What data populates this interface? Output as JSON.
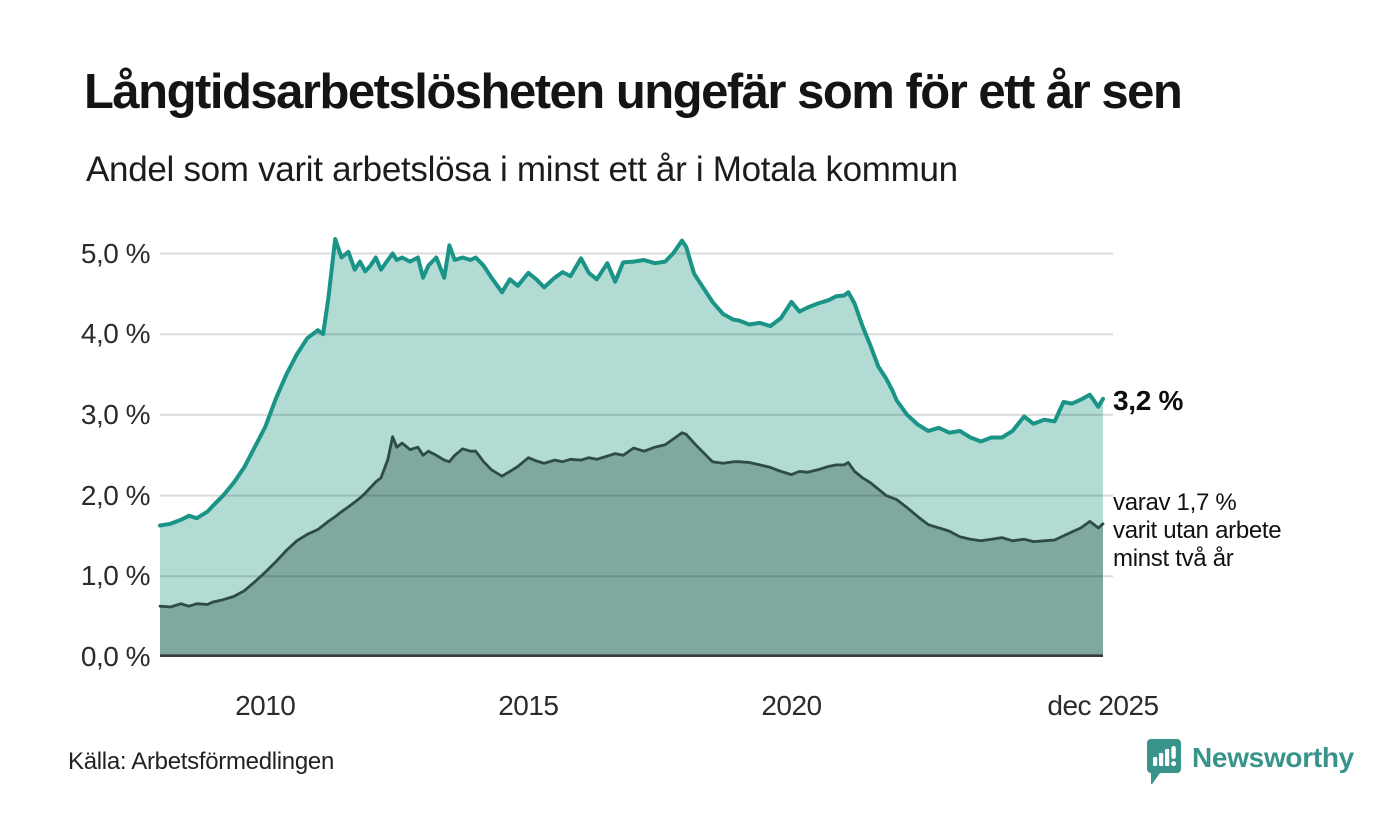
{
  "header": {
    "title": "Långtidsarbetslösheten ungefär som för ett år sen",
    "subtitle": "Andel som varit arbetslösa i minst ett år i Motala kommun"
  },
  "annotations": {
    "latest_total_label": "3,2 %",
    "secondary_line1": "varav 1,7 %",
    "secondary_line2": "varit utan arbete",
    "secondary_line3": "minst två år"
  },
  "footer": {
    "source": "Källa: Arbetsförmedlingen",
    "brand_name": "Newsworthy",
    "brand_icon": "newsworthy-speech-bubble-bar-chart-icon",
    "brand_color": "#38948b"
  },
  "colors": {
    "title_text": "#141414",
    "axis_text": "#2b2b2b",
    "grid_overlay": "rgba(0,0,0,0.14)",
    "baseline": "#3a3a3a",
    "series1_line": "#1a9486",
    "series1_fill": "#b2dbd4",
    "series2_line": "#2e4b47",
    "series2_fill": "#7fa8a1"
  },
  "chart_data": {
    "type": "area",
    "title": "Långtidsarbetslösheten ungefär som för ett år sen",
    "subtitle": "Andel som varit arbetslösa i minst ett år i Motala kommun",
    "unit": "%",
    "x_range": [
      2008.0,
      2025.92
    ],
    "ylim": [
      0,
      5.31
    ],
    "grid": true,
    "legend_position": "right-annotations",
    "y_ticks": [
      {
        "label": "0,0 %",
        "v": 0
      },
      {
        "label": "1,0 %",
        "v": 1
      },
      {
        "label": "2,0 %",
        "v": 2
      },
      {
        "label": "3,0 %",
        "v": 3
      },
      {
        "label": "4,0 %",
        "v": 4
      },
      {
        "label": "5,0 %",
        "v": 5
      }
    ],
    "x_ticks": [
      {
        "label": "2010",
        "x": 2010.0
      },
      {
        "label": "2015",
        "x": 2015.0
      },
      {
        "label": "2020",
        "x": 2020.0
      },
      {
        "label": "dec 2025",
        "x": 2025.92
      }
    ],
    "latest_values": {
      "total_min_one_year": 3.2,
      "min_two_years": 1.7
    },
    "x": [
      2008.0,
      2008.2,
      2008.4,
      2008.55,
      2008.7,
      2008.9,
      2009.0,
      2009.2,
      2009.4,
      2009.6,
      2009.8,
      2010.0,
      2010.2,
      2010.4,
      2010.6,
      2010.8,
      2011.0,
      2011.1,
      2011.2,
      2011.33,
      2011.45,
      2011.58,
      2011.7,
      2011.8,
      2011.9,
      2012.0,
      2012.1,
      2012.2,
      2012.33,
      2012.42,
      2012.5,
      2012.6,
      2012.75,
      2012.9,
      2013.0,
      2013.1,
      2013.25,
      2013.4,
      2013.5,
      2013.6,
      2013.75,
      2013.9,
      2014.0,
      2014.15,
      2014.3,
      2014.5,
      2014.65,
      2014.8,
      2015.0,
      2015.15,
      2015.3,
      2015.5,
      2015.65,
      2015.8,
      2016.0,
      2016.15,
      2016.3,
      2016.5,
      2016.65,
      2016.8,
      2017.0,
      2017.2,
      2017.4,
      2017.6,
      2017.75,
      2017.92,
      2018.0,
      2018.15,
      2018.3,
      2018.5,
      2018.7,
      2018.9,
      2019.0,
      2019.2,
      2019.4,
      2019.6,
      2019.8,
      2020.0,
      2020.15,
      2020.3,
      2020.5,
      2020.7,
      2020.85,
      2021.0,
      2021.08,
      2021.2,
      2021.35,
      2021.5,
      2021.65,
      2021.8,
      2021.92,
      2022.0,
      2022.2,
      2022.4,
      2022.6,
      2022.8,
      2023.0,
      2023.2,
      2023.4,
      2023.6,
      2023.8,
      2024.0,
      2024.2,
      2024.42,
      2024.6,
      2024.8,
      2025.0,
      2025.17,
      2025.33,
      2025.5,
      2025.67,
      2025.83,
      2025.92
    ],
    "series": [
      {
        "name": "Andel som varit arbetslösa i minst ett år",
        "line_color": "#1a9486",
        "fill_color": "#b2dbd4",
        "values": [
          1.63,
          1.65,
          1.7,
          1.75,
          1.72,
          1.8,
          1.87,
          2.0,
          2.16,
          2.35,
          2.6,
          2.85,
          3.2,
          3.5,
          3.75,
          3.95,
          4.05,
          4.0,
          4.45,
          5.18,
          4.95,
          5.02,
          4.8,
          4.9,
          4.78,
          4.85,
          4.95,
          4.8,
          4.92,
          5.0,
          4.92,
          4.95,
          4.9,
          4.95,
          4.7,
          4.85,
          4.95,
          4.7,
          5.1,
          4.92,
          4.95,
          4.92,
          4.95,
          4.85,
          4.7,
          4.52,
          4.68,
          4.6,
          4.76,
          4.68,
          4.58,
          4.7,
          4.77,
          4.72,
          4.94,
          4.76,
          4.68,
          4.88,
          4.65,
          4.89,
          4.9,
          4.92,
          4.88,
          4.9,
          5.0,
          5.16,
          5.08,
          4.75,
          4.6,
          4.4,
          4.25,
          4.18,
          4.17,
          4.12,
          4.14,
          4.1,
          4.2,
          4.4,
          4.28,
          4.33,
          4.38,
          4.42,
          4.47,
          4.48,
          4.52,
          4.38,
          4.1,
          3.86,
          3.6,
          3.45,
          3.3,
          3.18,
          3.0,
          2.88,
          2.8,
          2.84,
          2.78,
          2.8,
          2.72,
          2.67,
          2.72,
          2.72,
          2.8,
          2.98,
          2.89,
          2.94,
          2.92,
          3.16,
          3.14,
          3.19,
          3.25,
          3.1,
          3.2
        ]
      },
      {
        "name": "varav varit utan arbete minst två år",
        "line_color": "#2e4b47",
        "fill_color": "#7fa8a1",
        "values": [
          0.63,
          0.62,
          0.66,
          0.63,
          0.66,
          0.65,
          0.68,
          0.71,
          0.75,
          0.82,
          0.93,
          1.05,
          1.18,
          1.32,
          1.44,
          1.52,
          1.58,
          1.63,
          1.68,
          1.74,
          1.8,
          1.86,
          1.92,
          1.97,
          2.03,
          2.1,
          2.17,
          2.22,
          2.45,
          2.73,
          2.6,
          2.65,
          2.57,
          2.6,
          2.5,
          2.55,
          2.5,
          2.44,
          2.42,
          2.5,
          2.58,
          2.55,
          2.55,
          2.42,
          2.32,
          2.24,
          2.3,
          2.36,
          2.47,
          2.43,
          2.4,
          2.44,
          2.42,
          2.45,
          2.44,
          2.47,
          2.45,
          2.49,
          2.52,
          2.5,
          2.59,
          2.55,
          2.6,
          2.63,
          2.7,
          2.78,
          2.76,
          2.65,
          2.55,
          2.42,
          2.4,
          2.42,
          2.42,
          2.41,
          2.38,
          2.35,
          2.3,
          2.26,
          2.3,
          2.29,
          2.32,
          2.36,
          2.38,
          2.38,
          2.41,
          2.3,
          2.22,
          2.16,
          2.08,
          2.0,
          1.97,
          1.95,
          1.85,
          1.74,
          1.64,
          1.6,
          1.56,
          1.49,
          1.46,
          1.44,
          1.46,
          1.48,
          1.44,
          1.46,
          1.43,
          1.44,
          1.45,
          1.5,
          1.55,
          1.6,
          1.68,
          1.6,
          1.65
        ]
      }
    ]
  }
}
